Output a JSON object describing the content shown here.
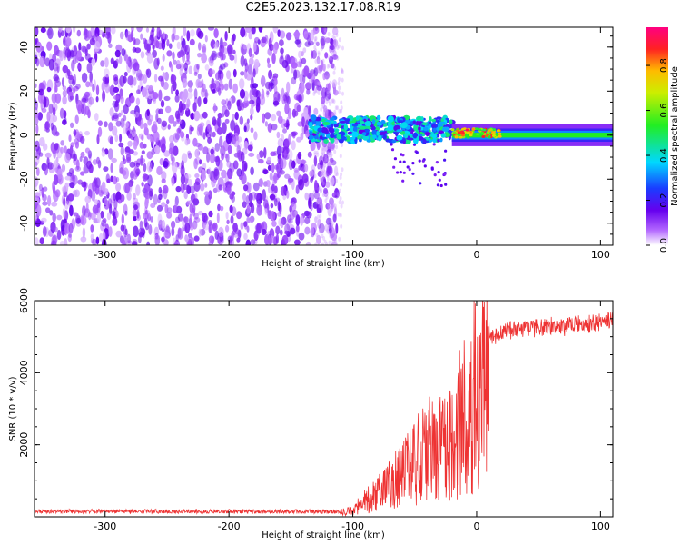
{
  "title": "C2E5.2023.132.17.08.R19",
  "chart_data": [
    {
      "type": "heatmap",
      "xlabel": "Height of straight line (km)",
      "ylabel": "Frequency (Hz)",
      "xlim": [
        -357,
        110
      ],
      "ylim": [
        -50,
        49
      ],
      "x_ticks": [
        "-300",
        "-200",
        "-100",
        "0",
        "100"
      ],
      "x_tick_values": [
        -300,
        -200,
        -100,
        0,
        100
      ],
      "y_ticks": [
        "-40",
        "-20",
        "0",
        "20",
        "40"
      ],
      "y_tick_values": [
        -40,
        -20,
        0,
        20,
        40
      ],
      "colorbar": {
        "label": "Normalized spectral amplitude",
        "range": [
          0,
          0.97
        ],
        "ticks": [
          "0.0",
          "0.2",
          "0.4",
          "0.6",
          "0.8"
        ],
        "tick_values": [
          0.0,
          0.2,
          0.4,
          0.6,
          0.8
        ],
        "colormap": "rainbow"
      },
      "regions": [
        {
          "x_range": [
            -357,
            -113
          ],
          "y_range": [
            -50,
            49
          ],
          "amplitude": [
            0.02,
            0.15
          ],
          "description_value": "noise"
        },
        {
          "x_range": [
            -135,
            -20
          ],
          "y_range": [
            -3,
            8
          ],
          "amplitude": [
            0.15,
            0.5
          ]
        },
        {
          "x_range": [
            -20,
            110
          ],
          "y_range": [
            -3,
            3
          ],
          "amplitude": [
            0.35,
            0.9
          ]
        }
      ]
    },
    {
      "type": "line",
      "xlabel": "Height of straight line (km)",
      "ylabel": "SNR (10 * v/v)",
      "xlim": [
        -357,
        110
      ],
      "ylim": [
        0,
        6000
      ],
      "x_ticks": [
        "-300",
        "-200",
        "-100",
        "0",
        "100"
      ],
      "x_tick_values": [
        -300,
        -200,
        -100,
        0,
        100
      ],
      "y_ticks": [
        "2000",
        "4000",
        "6000"
      ],
      "y_tick_values": [
        2000,
        4000,
        6000
      ],
      "color": "#ee3333",
      "series": [
        {
          "x": [
            -357,
            -300,
            -250,
            -200,
            -150,
            -110,
            -100,
            -90,
            -80,
            -70,
            -60,
            -50,
            -40,
            -30,
            -20,
            -10,
            0,
            10,
            20,
            30,
            40,
            50,
            60,
            70,
            80,
            90,
            100,
            110
          ],
          "values": [
            150,
            150,
            150,
            150,
            150,
            150,
            250,
            500,
            800,
            1100,
            1500,
            1800,
            2200,
            2400,
            2600,
            3500,
            4300,
            4900,
            5100,
            5200,
            5200,
            5250,
            5300,
            5250,
            5350,
            5350,
            5400,
            5500
          ]
        }
      ]
    }
  ]
}
